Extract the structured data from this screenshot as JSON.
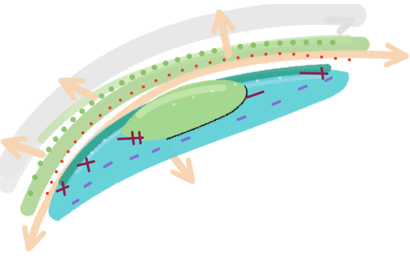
{
  "colors": {
    "background": "#ffffff",
    "grey_band": "#e6e6e6",
    "green_band": "#a9d18e",
    "tree_dots": "#7fbf5a",
    "peach_arrow": "#f8d4b0",
    "red_dots": "#e8442e",
    "teal_band": "#2fa08c",
    "water": "#5ccfd6",
    "island": "#a8d78a",
    "island_outline": "#1f1f1f",
    "piers": "#8c1f4f",
    "purple_dashes": "#8a5bd6"
  },
  "icon_names": [
    "expansion-arrow-icon",
    "pier-icon"
  ]
}
